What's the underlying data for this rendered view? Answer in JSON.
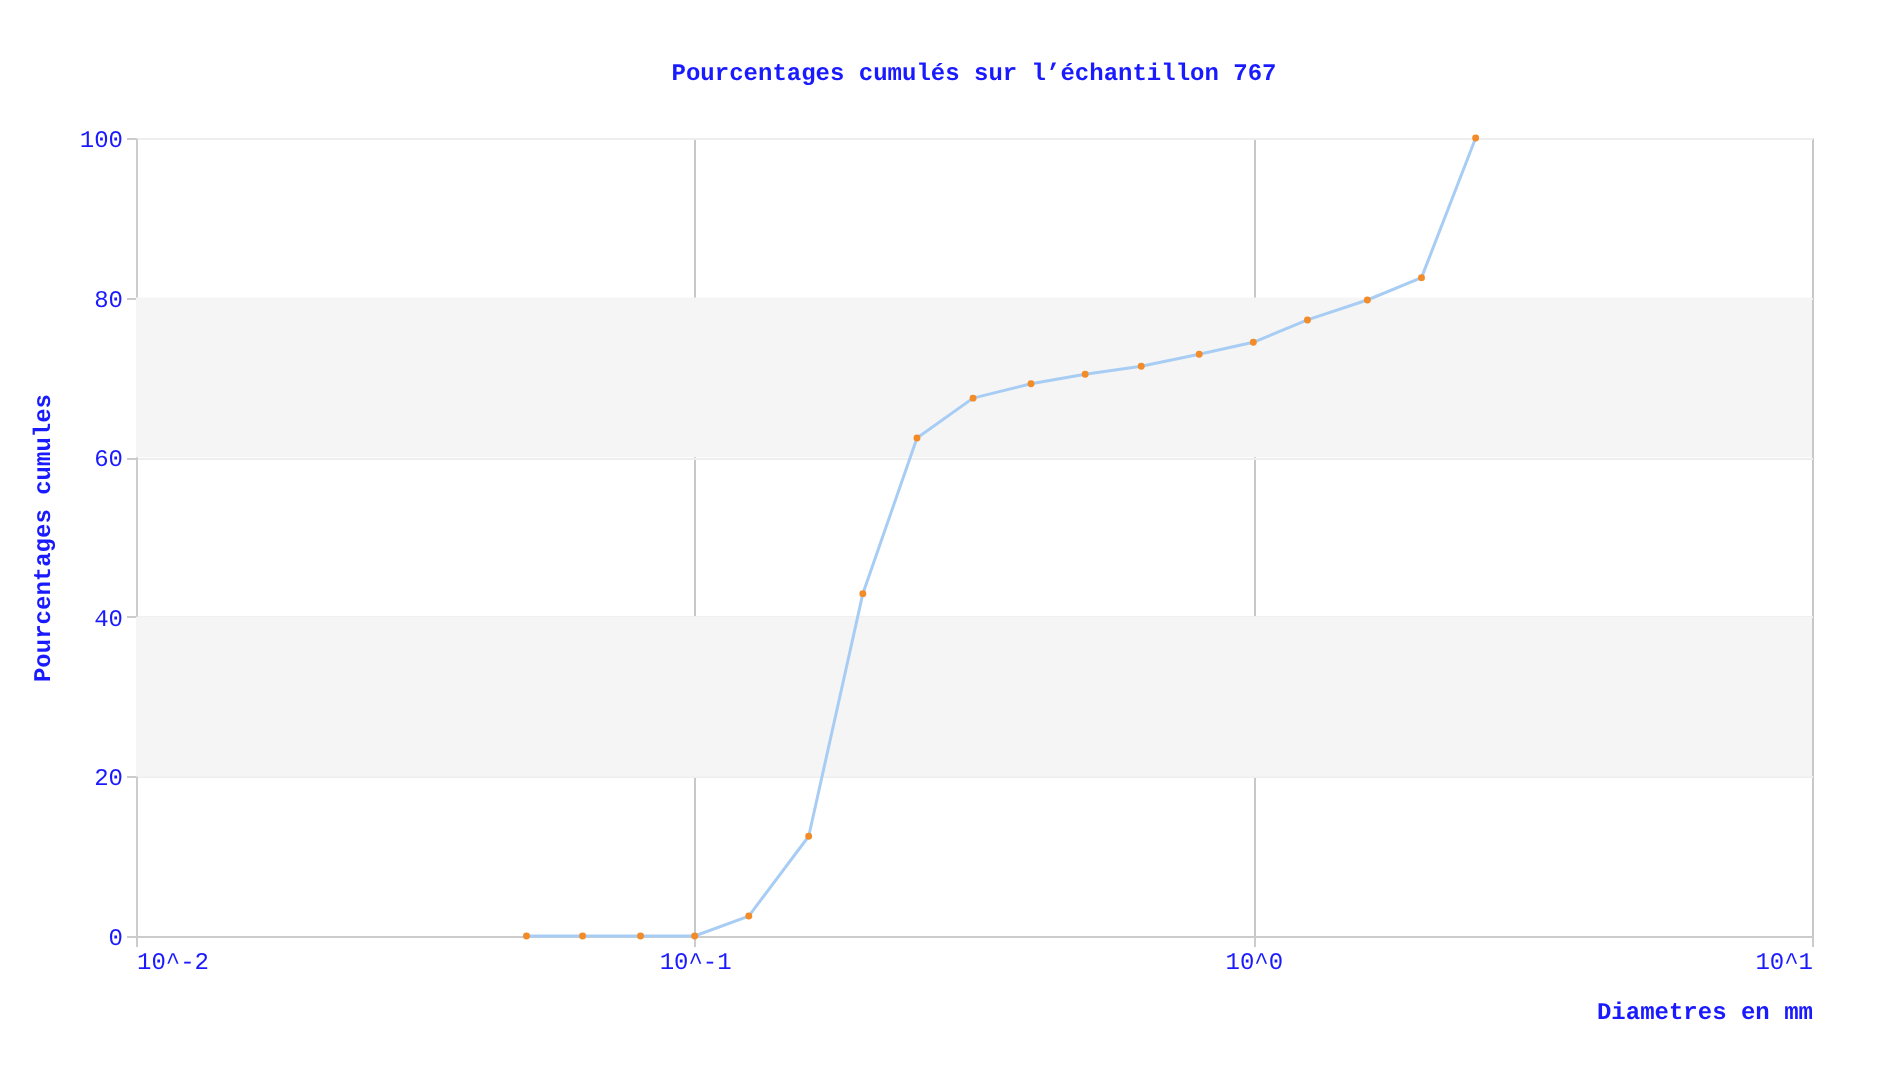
{
  "chart_data": {
    "type": "line",
    "title": "Pourcentages cumulés sur l’échantillon 767",
    "xlabel": "Diametres en mm",
    "ylabel": "Pourcentages cumules",
    "x": [
      0.05,
      0.063,
      0.08,
      0.1,
      0.125,
      0.16,
      0.2,
      0.25,
      0.315,
      0.4,
      0.5,
      0.63,
      0.8,
      1,
      1.25,
      1.6,
      2,
      2.5
    ],
    "series": [
      {
        "color": "#a8cdf5",
        "values": [
          0,
          0,
          0,
          0,
          2.5,
          12.5,
          42.9,
          62.4,
          67.4,
          69.2,
          70.4,
          71.4,
          72.9,
          74.4,
          77.2,
          79.7,
          82.5,
          100
        ]
      }
    ],
    "log": "x",
    "xlim": [
      0.01,
      10
    ],
    "xticks": [
      {
        "value": 0.01,
        "label": "10^-2"
      },
      {
        "value": 0.1,
        "label": "10^-1"
      },
      {
        "value": 1,
        "label": "10^0"
      },
      {
        "value": 10,
        "label": "10^1"
      }
    ],
    "ylim": [
      0,
      100
    ],
    "yticks": [
      0,
      20,
      40,
      60,
      80,
      100
    ],
    "bands": [
      {
        "axis": "y",
        "from": 20,
        "to": 40,
        "color": "#f5f5f5"
      },
      {
        "axis": "y",
        "from": 60,
        "to": 80,
        "color": "#f5f5f5"
      }
    ],
    "grid": true,
    "marker": "circle",
    "line_style": "solid"
  }
}
